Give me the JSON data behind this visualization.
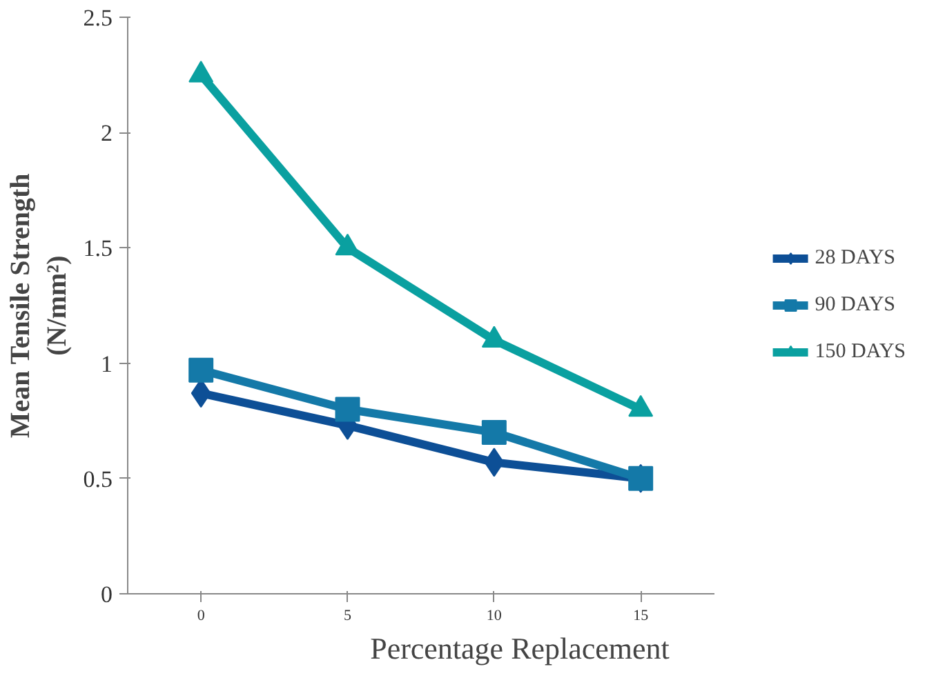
{
  "chart_data": {
    "type": "line",
    "xlabel": "Percentage Replacement",
    "ylabel": "Mean Tensile Strength\n(N/mm²)",
    "categories": [
      "0",
      "5",
      "10",
      "15"
    ],
    "series": [
      {
        "name": "28 DAYS",
        "color": "#0d4f96",
        "marker": "diamond",
        "values": [
          0.87,
          0.73,
          0.57,
          0.5
        ]
      },
      {
        "name": "90 DAYS",
        "color": "#1479a8",
        "marker": "square",
        "values": [
          0.97,
          0.8,
          0.7,
          0.5
        ]
      },
      {
        "name": "150 DAYS",
        "color": "#0aa0a0",
        "marker": "triangle",
        "values": [
          2.25,
          1.5,
          1.1,
          0.8
        ]
      }
    ],
    "ylim": [
      0,
      2.5
    ],
    "yticks": [
      0,
      0.5,
      1,
      1.5,
      2,
      2.5
    ],
    "grid": false,
    "legend": "right"
  }
}
